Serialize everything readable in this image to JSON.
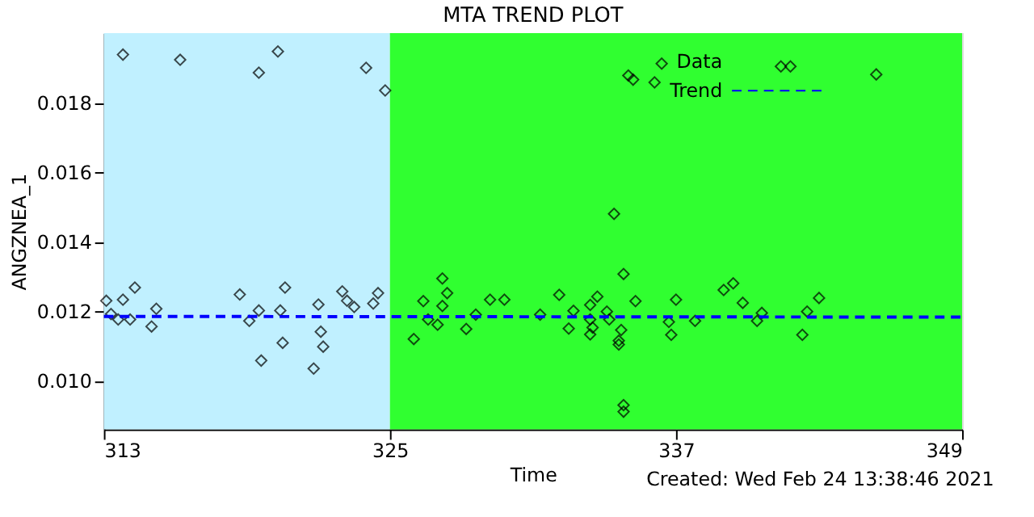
{
  "chart_data": {
    "type": "scatter",
    "title": "MTA TREND PLOT",
    "xlabel": "Time",
    "ylabel": "ANGZNEA_1",
    "xlim": [
      313,
      349
    ],
    "xticks": [
      313,
      325,
      337,
      349
    ],
    "ylim": [
      0.0086,
      0.02
    ],
    "yticks": [
      {
        "value": 0.01,
        "label": "0.010"
      },
      {
        "value": 0.012,
        "label": "0.012"
      },
      {
        "value": 0.014,
        "label": "0.014"
      },
      {
        "value": 0.016,
        "label": "0.016"
      },
      {
        "value": 0.018,
        "label": "0.018"
      }
    ],
    "grid": false,
    "legend": "top right",
    "bands": [
      {
        "axis": "x",
        "from": 313,
        "to": 325,
        "color": "#c0f0ff"
      },
      {
        "axis": "x",
        "from": 325,
        "to": 349,
        "color": "#30ff30"
      }
    ],
    "series": [
      {
        "name": "Data",
        "color": "#000000",
        "marker": "diamond",
        "x": [
          313.8,
          316.2,
          319.5,
          320.3,
          324.0,
          324.8,
          313.1,
          313.8,
          314.3,
          313.3,
          313.6,
          314.1,
          315.2,
          315.0,
          318.7,
          319.1,
          319.5,
          319.6,
          320.4,
          320.6,
          320.5,
          321.8,
          322.0,
          322.1,
          322.2,
          323.0,
          323.2,
          323.5,
          324.3,
          324.5,
          326.0,
          326.4,
          326.6,
          327.0,
          327.2,
          327.2,
          327.4,
          328.2,
          328.6,
          329.2,
          329.8,
          331.3,
          332.1,
          332.5,
          332.7,
          333.4,
          333.4,
          333.5,
          333.4,
          333.7,
          334.1,
          334.2,
          334.4,
          334.8,
          334.7,
          334.6,
          334.6,
          334.8,
          334.8,
          335.0,
          335.2,
          336.1,
          336.4,
          335.3,
          336.7,
          336.8,
          337.0,
          337.8,
          339.0,
          339.4,
          339.8,
          340.4,
          340.6,
          342.3,
          342.5,
          343.0,
          345.4,
          341.4,
          341.8
        ],
        "values": [
          0.01938,
          0.01923,
          0.01886,
          0.01947,
          0.019,
          0.01835,
          0.0123,
          0.01233,
          0.01268,
          0.01192,
          0.01176,
          0.01176,
          0.01207,
          0.01156,
          0.01248,
          0.01172,
          0.01202,
          0.01058,
          0.01202,
          0.01268,
          0.01109,
          0.01035,
          0.01219,
          0.01141,
          0.01098,
          0.01257,
          0.0123,
          0.01212,
          0.01222,
          0.01252,
          0.0112,
          0.01229,
          0.01176,
          0.01161,
          0.01294,
          0.01215,
          0.01252,
          0.01149,
          0.0119,
          0.01233,
          0.01233,
          0.0119,
          0.01247,
          0.0115,
          0.01201,
          0.01218,
          0.01176,
          0.01153,
          0.01133,
          0.01242,
          0.01199,
          0.01176,
          0.0148,
          0.01307,
          0.01146,
          0.01115,
          0.01104,
          0.0093,
          0.00911,
          0.01878,
          0.01866,
          0.01858,
          0.01912,
          0.01229,
          0.01169,
          0.01132,
          0.01233,
          0.01172,
          0.01261,
          0.0128,
          0.01224,
          0.01172,
          0.01195,
          0.01132,
          0.01199,
          0.01238,
          0.01881,
          0.01904,
          0.01904
        ]
      },
      {
        "name": "Trend",
        "type": "line",
        "color": "#0000ff",
        "line_style": "dashed",
        "marker": "none",
        "x": [
          313,
          349
        ],
        "values": [
          0.01185,
          0.01183
        ]
      }
    ],
    "annotations": [
      "Created: Wed Feb 24 13:38:46 2021"
    ]
  }
}
